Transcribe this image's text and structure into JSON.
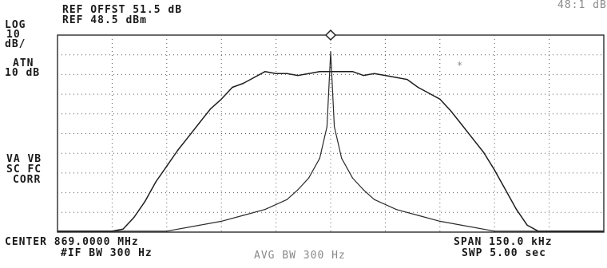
{
  "header": {
    "ref_offset_label": "REF OFFST 51.5 dB",
    "ref_level_label": "REF 48.5 dBm",
    "top_right_fragment": "48:1 dB"
  },
  "left_annotations": {
    "scale_lines": [
      "LOG",
      "10",
      "dB/"
    ],
    "atten_lines": [
      "ATN",
      "10 dB"
    ],
    "coupling_lines": [
      "VA VB",
      "SC FC",
      "CORR"
    ]
  },
  "footer": {
    "center_label": "CENTER 869.0000 MHz",
    "if_bw_label": "#IF BW 300 Hz",
    "avg_bw_label": "AVG BW 300 Hz",
    "span_label": "SPAN 150.0 kHz",
    "sweep_label": "SWP 5.00 sec"
  },
  "marker_symbol": "*",
  "chart_data": {
    "type": "line",
    "title": "",
    "xlabel": "",
    "ylabel": "",
    "x_unit": "kHz offset from center",
    "y_unit": "dBm",
    "xlim": [
      -75,
      75
    ],
    "ylim": [
      -51.5,
      48.5
    ],
    "grid": true,
    "colors": {
      "trace": "#1e1e1e",
      "narrow_trace": "#2a2a2a",
      "grid": "#5a5a5a"
    },
    "series": [
      {
        "x": [
          -75,
          -72,
          -69,
          -66,
          -63,
          -60,
          -57,
          -54,
          -51,
          -48,
          -45,
          -42,
          -39,
          -36,
          -33,
          -30,
          -27,
          -24,
          -21,
          -18,
          -15,
          -12,
          -9,
          -6,
          -3,
          0,
          3,
          6,
          9,
          12,
          15,
          18,
          21,
          24,
          27,
          30,
          33,
          36,
          39,
          42,
          45,
          48,
          51,
          54,
          57,
          60,
          63,
          66,
          69,
          72,
          75
        ],
        "y": [
          -51,
          -51,
          -51,
          -51,
          -51,
          -51,
          -50,
          -44,
          -36,
          -26,
          -18,
          -10,
          -3,
          4,
          11,
          16,
          22,
          24,
          27,
          30,
          29,
          29,
          28,
          29,
          30,
          30,
          30,
          30,
          28,
          29,
          28,
          27,
          26,
          22,
          19,
          16,
          10,
          3,
          -4,
          -11,
          -20,
          -30,
          -40,
          -48,
          -51,
          -51,
          -51,
          -51,
          -51,
          -51,
          -51
        ]
      },
      {
        "x": [
          -75,
          -45,
          -36,
          -30,
          -24,
          -18,
          -12,
          -9,
          -6,
          -3,
          -1,
          0,
          1,
          3,
          6,
          9,
          12,
          18,
          24,
          30,
          36,
          45,
          75
        ],
        "y": [
          -51,
          -51,
          -48,
          -46,
          -43,
          -40,
          -35,
          -30,
          -24,
          -14,
          2,
          40,
          2,
          -14,
          -24,
          -30,
          -35,
          -40,
          -43,
          -46,
          -48,
          -51,
          -51
        ]
      }
    ],
    "marker": {
      "x": 0,
      "y": 48.5
    }
  }
}
